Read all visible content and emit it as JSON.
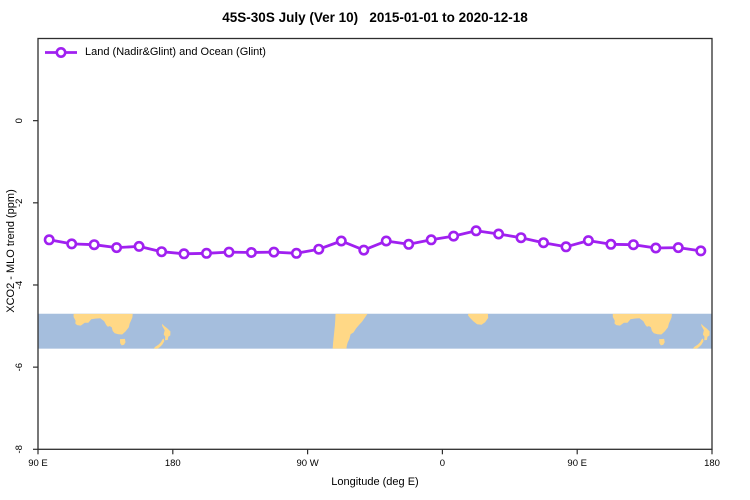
{
  "title": "45S-30S July (Ver 10)   2015-01-01 to 2020-12-18",
  "legend": {
    "label": "Land (Nadir&Glint) and Ocean (Glint)"
  },
  "axes": {
    "x_label": "Longitude (deg E)",
    "y_label": "XCO2 - MLO trend (ppm)"
  },
  "colors": {
    "series": "#A020F0",
    "marker_fill": "#ffffff",
    "ocean": "#a5bedd",
    "land": "#ffd886",
    "axis": "#2e2e2e",
    "text": "#000000"
  },
  "chart_data": {
    "type": "line",
    "title": "45S-30S July (Ver 10)   2015-01-01 to 2020-12-18",
    "xlabel": "Longitude (deg E)",
    "ylabel": "XCO2 - MLO trend (ppm)",
    "xlim": [
      90,
      540
    ],
    "ylim": [
      -8,
      2
    ],
    "x_tick_values": [
      90,
      180,
      270,
      360,
      450,
      540
    ],
    "x_tick_labels": [
      "90 E",
      "180",
      "90 W",
      "0",
      "90 E",
      "180"
    ],
    "y_tick_values": [
      0,
      -2,
      -4,
      -6,
      -8
    ],
    "y_tick_labels": [
      "0",
      "-2",
      "-4",
      "-6",
      "-8"
    ],
    "grid": "off",
    "legend_position": "top-left inside plot",
    "series": [
      {
        "name": "Land (Nadir&Glint) and Ocean (Glint)",
        "marker": "open-circle",
        "x": [
          97.5,
          112.5,
          127.5,
          142.5,
          157.5,
          172.5,
          187.5,
          202.5,
          217.5,
          232.5,
          247.5,
          262.5,
          277.5,
          292.5,
          307.5,
          322.5,
          337.5,
          352.5,
          367.5,
          382.5,
          397.5,
          412.5,
          427.5,
          442.5,
          457.5,
          472.5,
          487.5,
          502.5,
          517.5,
          532.5
        ],
        "y": [
          -2.9,
          -3.0,
          -3.02,
          -3.09,
          -3.06,
          -3.19,
          -3.24,
          -3.23,
          -3.2,
          -3.21,
          -3.2,
          -3.23,
          -3.13,
          -2.93,
          -3.15,
          -2.93,
          -3.01,
          -2.9,
          -2.81,
          -2.68,
          -2.76,
          -2.85,
          -2.97,
          -3.07,
          -2.92,
          -3.01,
          -3.02,
          -3.1,
          -3.09,
          -3.17
        ]
      }
    ],
    "map_strip": {
      "description": "World map band of the 45S-30S latitude zone drawn across the plot",
      "value_top": -4.7,
      "value_bottom": -5.55,
      "visible_land": [
        "Australia",
        "Tasmania",
        "New Zealand",
        "South America",
        "South Africa",
        "Australia (repeat)",
        "New Zealand (repeat)"
      ]
    }
  }
}
